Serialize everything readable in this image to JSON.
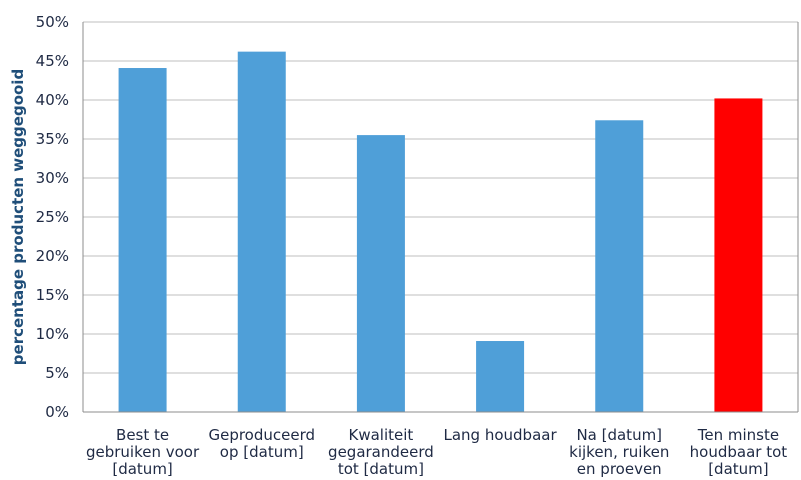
{
  "chart_data": {
    "type": "bar",
    "title": "",
    "xlabel": "",
    "ylabel": "percentage producten weggegooid",
    "categories": [
      [
        "Best te",
        "gebruiken voor",
        "[datum]"
      ],
      [
        "Geproduceerd",
        "op [datum]"
      ],
      [
        "Kwaliteit",
        "gegarandeerd",
        "tot [datum]"
      ],
      [
        "Lang houdbaar"
      ],
      [
        "Na [datum]",
        "kijken, ruiken",
        "en proeven"
      ],
      [
        "Ten minste",
        "houdbaar tot",
        "[datum]"
      ]
    ],
    "values": [
      44.1,
      46.2,
      35.5,
      9.1,
      37.4,
      40.2
    ],
    "bar_colors": [
      "#4f9fd8",
      "#4f9fd8",
      "#4f9fd8",
      "#4f9fd8",
      "#4f9fd8",
      "#ff0000"
    ],
    "ylim": [
      0,
      50
    ],
    "yticks": [
      "0%",
      "5%",
      "10%",
      "15%",
      "20%",
      "25%",
      "30%",
      "35%",
      "40%",
      "45%",
      "50%"
    ],
    "grid": true,
    "legend": "none"
  }
}
